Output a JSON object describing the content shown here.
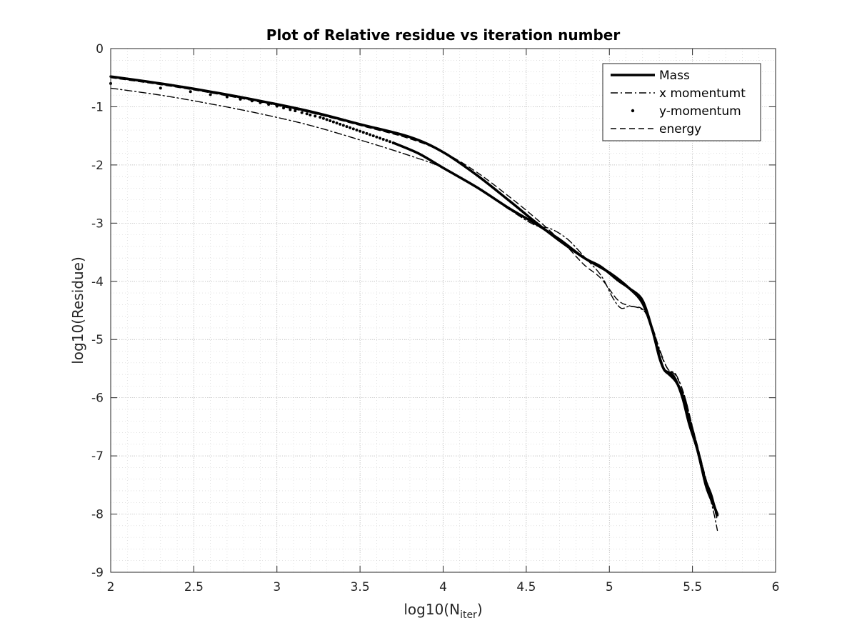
{
  "chart_data": {
    "type": "line",
    "title": "Plot of Relative residue vs iteration number",
    "xlabel": {
      "main": "log10(N",
      "sub": "iter",
      "close": ")"
    },
    "ylabel": "log10(Residue)",
    "xlim": [
      2,
      6
    ],
    "ylim": [
      -9,
      0
    ],
    "xticks": [
      2,
      2.5,
      3,
      3.5,
      4,
      4.5,
      5,
      5.5,
      6
    ],
    "xtick_labels": [
      "2",
      "2.5",
      "3",
      "3.5",
      "4",
      "4.5",
      "5",
      "5.5",
      "6"
    ],
    "yticks": [
      0,
      -1,
      -2,
      -3,
      -4,
      -5,
      -6,
      -7,
      -8,
      -9
    ],
    "ytick_labels": [
      "0",
      "-1",
      "-2",
      "-3",
      "-4",
      "-5",
      "-6",
      "-7",
      "-8",
      "-9"
    ],
    "grid": true,
    "minor_grid": true,
    "legend_position": "top-right",
    "series": [
      {
        "name": "Mass",
        "style": "solid-thick",
        "x": [
          2.0,
          2.3,
          2.6,
          2.9,
          3.2,
          3.5,
          3.8,
          4.0,
          4.2,
          4.4,
          4.55,
          4.7,
          4.85,
          4.95,
          5.05,
          5.12,
          5.2,
          5.26,
          5.3,
          5.33,
          5.36,
          5.4,
          5.44,
          5.48,
          5.52,
          5.57,
          5.61,
          5.63,
          5.65
        ],
        "y": [
          -0.48,
          -0.6,
          -0.74,
          -0.9,
          -1.08,
          -1.3,
          -1.52,
          -1.78,
          -2.17,
          -2.62,
          -2.97,
          -3.3,
          -3.6,
          -3.75,
          -3.98,
          -4.12,
          -4.33,
          -4.85,
          -5.3,
          -5.52,
          -5.6,
          -5.72,
          -5.95,
          -6.38,
          -6.78,
          -7.35,
          -7.65,
          -7.85,
          -8.02
        ]
      },
      {
        "name": "x momentumt",
        "style": "dash-dot",
        "x": [
          2.0,
          2.3,
          2.6,
          2.9,
          3.2,
          3.5,
          3.8,
          4.0,
          4.2,
          4.4,
          4.55,
          4.65,
          4.75,
          4.85,
          4.95,
          5.02,
          5.07,
          5.12,
          5.18,
          5.22,
          5.26,
          5.3,
          5.35,
          5.4,
          5.45,
          5.5,
          5.55,
          5.6,
          5.63,
          5.65
        ],
        "y": [
          -0.68,
          -0.8,
          -0.95,
          -1.12,
          -1.32,
          -1.57,
          -1.84,
          -2.05,
          -2.38,
          -2.77,
          -3.03,
          -3.1,
          -3.28,
          -3.58,
          -3.9,
          -4.28,
          -4.46,
          -4.43,
          -4.46,
          -4.55,
          -4.8,
          -5.15,
          -5.5,
          -5.6,
          -5.95,
          -6.5,
          -7.05,
          -7.65,
          -8.0,
          -8.28
        ]
      },
      {
        "name": "y-momentum",
        "style": "dots",
        "x": [
          2.0,
          2.3,
          2.48,
          2.6,
          2.7,
          2.78,
          2.85,
          2.9,
          2.95,
          3.0,
          3.04,
          3.08,
          3.11,
          3.15,
          3.18,
          3.2,
          3.23,
          3.26,
          3.28,
          3.3,
          3.32,
          3.34,
          3.36,
          3.38,
          3.4,
          3.42,
          3.44,
          3.46,
          3.48,
          3.5,
          3.52,
          3.54,
          3.56,
          3.58,
          3.6,
          3.62,
          3.64,
          3.66,
          3.68,
          3.7
        ],
        "y": [
          -0.6,
          -0.68,
          -0.74,
          -0.79,
          -0.83,
          -0.87,
          -0.9,
          -0.93,
          -0.96,
          -0.99,
          -1.02,
          -1.05,
          -1.07,
          -1.1,
          -1.12,
          -1.14,
          -1.16,
          -1.18,
          -1.2,
          -1.22,
          -1.24,
          -1.26,
          -1.28,
          -1.3,
          -1.32,
          -1.34,
          -1.36,
          -1.38,
          -1.4,
          -1.42,
          -1.44,
          -1.46,
          -1.48,
          -1.5,
          -1.52,
          -1.54,
          -1.56,
          -1.58,
          -1.6,
          -1.62
        ]
      },
      {
        "name": "y-momentum",
        "style": "solid-thick",
        "legend": false,
        "x": [
          3.7,
          3.85,
          4.0,
          4.2,
          4.4,
          4.55,
          4.7,
          4.85,
          5.0,
          5.12,
          5.2,
          5.26,
          5.3,
          5.33,
          5.37,
          5.4,
          5.44,
          5.48,
          5.53,
          5.58,
          5.62,
          5.65
        ],
        "y": [
          -1.62,
          -1.8,
          -2.05,
          -2.38,
          -2.75,
          -3.0,
          -3.28,
          -3.6,
          -3.85,
          -4.12,
          -4.38,
          -4.85,
          -5.28,
          -5.52,
          -5.58,
          -5.7,
          -6.0,
          -6.45,
          -6.9,
          -7.5,
          -7.8,
          -8.0
        ]
      },
      {
        "name": "energy",
        "style": "dashed",
        "x": [
          2.0,
          2.3,
          2.6,
          2.9,
          3.2,
          3.5,
          3.8,
          4.0,
          4.2,
          4.4,
          4.55,
          4.65,
          4.75,
          4.85,
          4.95,
          5.05,
          5.12,
          5.2,
          5.26,
          5.3,
          5.35,
          5.4,
          5.45,
          5.5,
          5.55,
          5.6,
          5.63,
          5.65
        ],
        "y": [
          -0.5,
          -0.62,
          -0.76,
          -0.92,
          -1.1,
          -1.32,
          -1.55,
          -1.78,
          -2.12,
          -2.55,
          -2.9,
          -3.15,
          -3.42,
          -3.72,
          -3.95,
          -4.32,
          -4.42,
          -4.48,
          -4.8,
          -5.18,
          -5.5,
          -5.62,
          -5.95,
          -6.5,
          -7.05,
          -7.6,
          -7.9,
          -8.1
        ]
      }
    ]
  }
}
